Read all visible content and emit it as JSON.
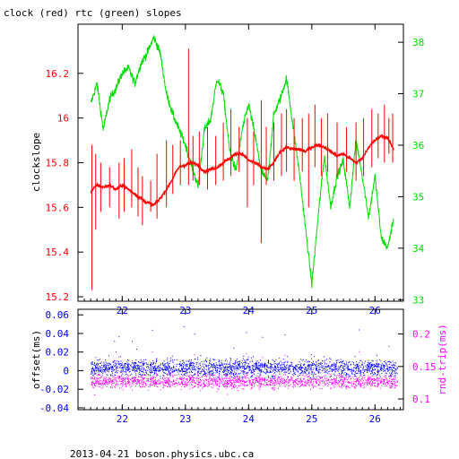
{
  "title": "clock (red) rtc (green) slopes",
  "footer": "2013-04-21 boson.physics.ubc.ca",
  "colors": {
    "clock": "#ff0000",
    "rtc": "#00dd00",
    "offset": "#0000ff",
    "rtt": "#ff00ff",
    "axes": "#000000"
  },
  "chart_data": [
    {
      "type": "line",
      "xlabel": "",
      "ylabel": "clockslope",
      "y2label": "",
      "xlim": [
        21.3,
        26.45
      ],
      "ylim": [
        15.18,
        16.42
      ],
      "y2lim": [
        32.97,
        38.35
      ],
      "xticks": [
        22,
        23,
        24,
        25,
        26
      ],
      "xtick_labels": [
        "22",
        "23",
        "24",
        "25",
        "26"
      ],
      "yticks": [
        15.2,
        15.4,
        15.6,
        15.8,
        16.0,
        16.2
      ],
      "ytick_labels": [
        "15.2",
        "15.4",
        "15.6",
        "15.8",
        "16",
        "16.2"
      ],
      "y2ticks": [
        33,
        34,
        35,
        36,
        37,
        38
      ],
      "y2tick_labels": [
        "33",
        "34",
        "35",
        "36",
        "37",
        "38"
      ],
      "series": [
        {
          "name": "clock",
          "axis": "left",
          "color": "#ff0000",
          "x": [
            21.5,
            21.6,
            21.7,
            21.8,
            21.9,
            22.0,
            22.1,
            22.2,
            22.3,
            22.4,
            22.5,
            22.6,
            22.7,
            22.8,
            22.9,
            23.0,
            23.1,
            23.2,
            23.3,
            23.4,
            23.5,
            23.6,
            23.7,
            23.8,
            23.9,
            24.0,
            24.1,
            24.2,
            24.3,
            24.4,
            24.5,
            24.6,
            24.7,
            24.8,
            24.9,
            25.0,
            25.1,
            25.2,
            25.3,
            25.4,
            25.5,
            25.6,
            25.7,
            25.8,
            25.9,
            26.0,
            26.1,
            26.2,
            26.3
          ],
          "y": [
            15.67,
            15.7,
            15.69,
            15.7,
            15.68,
            15.7,
            15.68,
            15.66,
            15.64,
            15.62,
            15.61,
            15.64,
            15.68,
            15.73,
            15.78,
            15.79,
            15.8,
            15.79,
            15.76,
            15.77,
            15.78,
            15.8,
            15.82,
            15.84,
            15.84,
            15.81,
            15.8,
            15.78,
            15.77,
            15.8,
            15.85,
            15.87,
            15.86,
            15.86,
            15.85,
            15.87,
            15.88,
            15.87,
            15.85,
            15.83,
            15.84,
            15.82,
            15.8,
            15.82,
            15.87,
            15.9,
            15.92,
            15.91,
            15.86
          ]
        },
        {
          "name": "rtc",
          "axis": "right",
          "color": "#00dd00",
          "x": [
            21.5,
            21.6,
            21.7,
            21.8,
            21.9,
            22.0,
            22.1,
            22.2,
            22.3,
            22.4,
            22.5,
            22.6,
            22.7,
            22.8,
            22.9,
            23.0,
            23.1,
            23.2,
            23.3,
            23.4,
            23.5,
            23.6,
            23.7,
            23.8,
            23.9,
            24.0,
            24.1,
            24.2,
            24.3,
            24.4,
            24.5,
            24.6,
            24.7,
            24.8,
            24.9,
            25.0,
            25.1,
            25.2,
            25.3,
            25.4,
            25.5,
            25.6,
            25.7,
            25.8,
            25.9,
            26.0,
            26.1,
            26.2,
            26.3
          ],
          "y": [
            36.8,
            37.2,
            36.3,
            36.9,
            37.1,
            37.4,
            37.5,
            37.2,
            37.6,
            37.8,
            38.1,
            37.8,
            37.0,
            36.6,
            36.3,
            36.0,
            35.6,
            35.2,
            36.3,
            36.5,
            37.3,
            37.0,
            35.9,
            35.5,
            36.3,
            36.8,
            36.2,
            35.5,
            35.3,
            36.6,
            36.9,
            37.3,
            36.4,
            35.5,
            34.4,
            33.3,
            34.6,
            35.8,
            34.8,
            35.4,
            35.7,
            34.8,
            36.1,
            35.4,
            34.6,
            35.4,
            34.2,
            34.0,
            34.6
          ]
        }
      ],
      "spikes": {
        "series": "clock",
        "x": [
          21.52,
          21.58,
          21.66,
          21.8,
          21.95,
          22.03,
          22.15,
          22.25,
          22.32,
          22.45,
          22.55,
          22.7,
          22.8,
          22.92,
          23.05,
          23.12,
          23.22,
          23.35,
          23.48,
          23.6,
          23.72,
          23.85,
          23.98,
          24.08,
          24.2,
          24.28,
          24.4,
          24.52,
          24.6,
          24.72,
          24.85,
          24.95,
          25.05,
          25.15,
          25.25,
          25.4,
          25.55,
          25.7,
          25.82,
          25.95,
          26.05,
          26.15,
          26.22,
          26.28
        ],
        "ylow": [
          15.23,
          15.5,
          15.58,
          15.6,
          15.55,
          15.58,
          15.6,
          15.56,
          15.52,
          15.58,
          15.55,
          15.6,
          15.66,
          15.7,
          15.7,
          15.72,
          15.7,
          15.68,
          15.7,
          15.72,
          15.74,
          15.76,
          15.6,
          15.7,
          15.44,
          15.7,
          15.72,
          15.74,
          15.76,
          15.72,
          15.76,
          15.6,
          15.78,
          15.74,
          15.76,
          15.74,
          15.76,
          15.72,
          15.74,
          15.78,
          15.82,
          15.8,
          15.84,
          15.8
        ],
        "yhigh": [
          15.88,
          15.84,
          15.8,
          15.78,
          15.8,
          15.82,
          15.86,
          15.78,
          15.74,
          15.72,
          15.84,
          15.9,
          15.88,
          15.9,
          16.31,
          15.92,
          15.94,
          15.96,
          15.92,
          15.98,
          16.04,
          15.96,
          16.0,
          15.94,
          16.08,
          15.96,
          15.98,
          16.02,
          16.04,
          16.0,
          16.0,
          16.02,
          16.06,
          16.0,
          16.02,
          15.98,
          15.96,
          15.98,
          16.0,
          16.04,
          16.02,
          16.06,
          16.0,
          16.02
        ]
      }
    },
    {
      "type": "scatter",
      "xlabel": "",
      "ylabel": "offset(ms)",
      "y2label": "rnd-trip(ms)",
      "xlim": [
        21.3,
        26.45
      ],
      "ylim": [
        -0.042,
        0.066
      ],
      "y2lim": [
        0.0835,
        0.2381
      ],
      "xticks": [
        22,
        23,
        24,
        25,
        26
      ],
      "xtick_labels": [
        "22",
        "23",
        "24",
        "25",
        "26"
      ],
      "yticks": [
        -0.04,
        -0.02,
        0,
        0.02,
        0.04,
        0.06
      ],
      "ytick_labels": [
        "-0.04",
        "-0.02",
        "0",
        "0.02",
        "0.04",
        "0.06"
      ],
      "y2ticks": [
        0.1,
        0.15,
        0.2
      ],
      "y2tick_labels": [
        "0.1",
        "0.15",
        "0.2"
      ],
      "series": [
        {
          "name": "offset",
          "axis": "left",
          "color": "#0000ff",
          "x_range": [
            21.5,
            26.35
          ],
          "center": 0.003,
          "spread": 0.016,
          "count": 9000
        },
        {
          "name": "rnd-trip",
          "axis": "right",
          "color": "#ff00ff",
          "x_range": [
            21.5,
            26.35
          ],
          "center": 0.127,
          "spread": 0.018,
          "count": 4500
        }
      ]
    }
  ]
}
